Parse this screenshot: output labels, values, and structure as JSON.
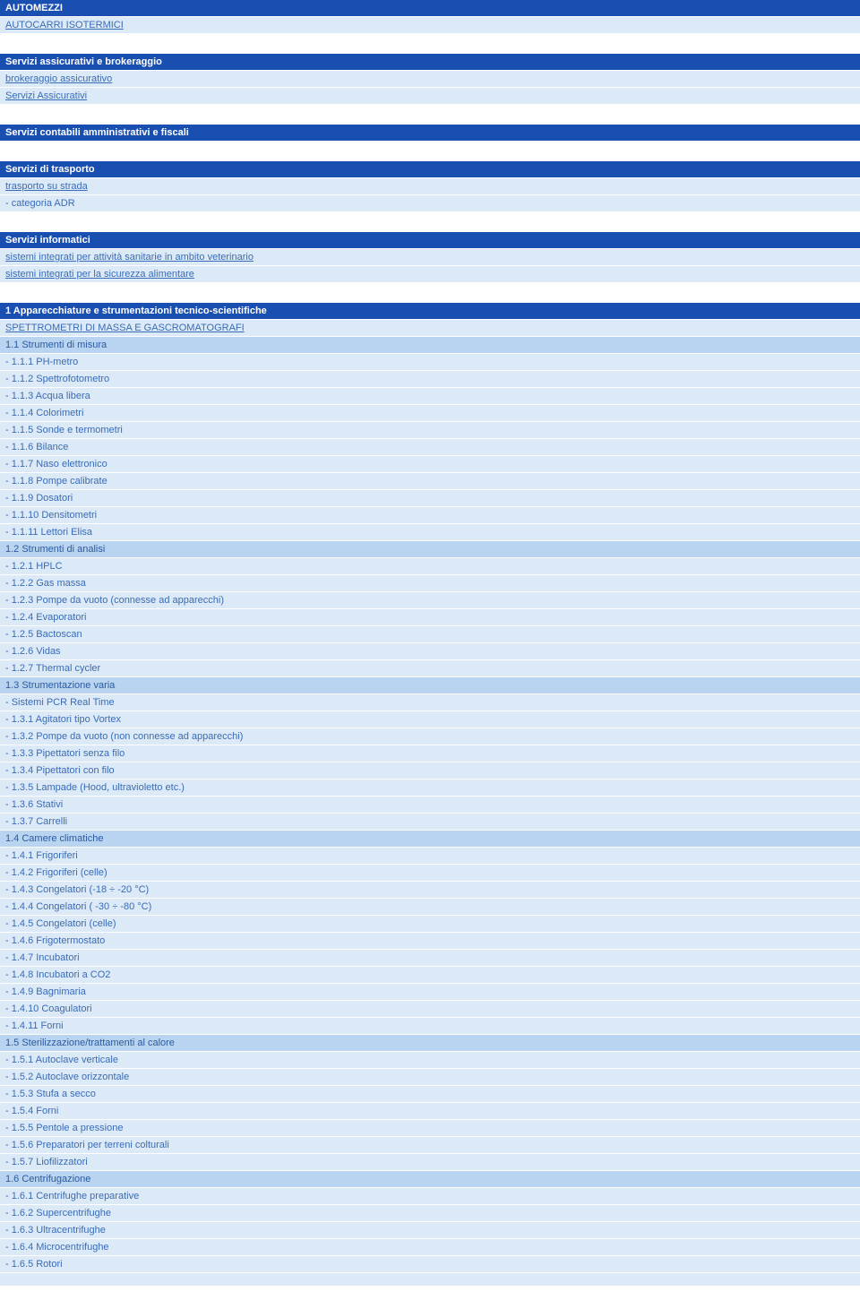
{
  "sections": [
    {
      "header": "AUTOMEZZI",
      "rows": [
        {
          "type": "link",
          "text": "AUTOCARRI ISOTERMICI"
        }
      ]
    },
    {
      "header": "Servizi assicurativi e brokeraggio",
      "rows": [
        {
          "type": "link",
          "text": "brokeraggio assicurativo"
        },
        {
          "type": "link",
          "text": "Servizi Assicurativi"
        }
      ]
    },
    {
      "header": "Servizi contabili amministrativi e fiscali",
      "rows": []
    },
    {
      "header": "Servizi di trasporto",
      "rows": [
        {
          "type": "link",
          "text": "trasporto su strada"
        },
        {
          "type": "plain",
          "text": "- categoria ADR"
        }
      ]
    },
    {
      "header": "Servizi informatici",
      "rows": [
        {
          "type": "link",
          "text": "sistemi integrati per attività sanitarie in ambito veterinario"
        },
        {
          "type": "link",
          "text": "sistemi integrati per la sicurezza alimentare"
        }
      ]
    }
  ],
  "mainSection": {
    "header": "1 Apparecchiature e strumentazioni tecnico-scientifiche",
    "rows": [
      {
        "type": "link",
        "text": "SPETTROMETRI DI MASSA E GASCROMATOGRAFI"
      },
      {
        "type": "sub",
        "text": "1.1 Strumenti di misura"
      },
      {
        "type": "plain",
        "text": "- 1.1.1 PH-metro"
      },
      {
        "type": "plain",
        "text": "- 1.1.2 Spettrofotometro"
      },
      {
        "type": "plain",
        "text": "- 1.1.3 Acqua libera"
      },
      {
        "type": "plain",
        "text": "- 1.1.4 Colorimetri"
      },
      {
        "type": "plain",
        "text": "- 1.1.5 Sonde e termometri"
      },
      {
        "type": "plain",
        "text": "- 1.1.6 Bilance"
      },
      {
        "type": "plain",
        "text": "- 1.1.7 Naso elettronico"
      },
      {
        "type": "plain",
        "text": "- 1.1.8 Pompe calibrate"
      },
      {
        "type": "plain",
        "text": "- 1.1.9 Dosatori"
      },
      {
        "type": "plain",
        "text": "- 1.1.10 Densitometri"
      },
      {
        "type": "plain",
        "text": "- 1.1.11 Lettori Elisa"
      },
      {
        "type": "sub",
        "text": "1.2 Strumenti di analisi"
      },
      {
        "type": "plain",
        "text": "- 1.2.1 HPLC"
      },
      {
        "type": "plain",
        "text": "- 1.2.2 Gas massa"
      },
      {
        "type": "plain",
        "text": "- 1.2.3 Pompe da vuoto (connesse ad apparecchi)"
      },
      {
        "type": "plain",
        "text": "- 1.2.4 Evaporatori"
      },
      {
        "type": "plain",
        "text": "- 1.2.5 Bactoscan"
      },
      {
        "type": "plain",
        "text": "- 1.2.6 Vidas"
      },
      {
        "type": "plain",
        "text": "- 1.2.7 Thermal cycler"
      },
      {
        "type": "sub",
        "text": "1.3 Strumentazione varia"
      },
      {
        "type": "plain",
        "text": "- Sistemi PCR Real Time"
      },
      {
        "type": "plain",
        "text": "- 1.3.1 Agitatori tipo Vortex"
      },
      {
        "type": "plain",
        "text": "- 1.3.2 Pompe da vuoto (non connesse ad apparecchi)"
      },
      {
        "type": "plain",
        "text": "- 1.3.3 Pipettatori senza filo"
      },
      {
        "type": "plain",
        "text": "- 1.3.4 Pipettatori con filo"
      },
      {
        "type": "plain",
        "text": "- 1.3.5 Lampade (Hood, ultravioletto etc.)"
      },
      {
        "type": "plain",
        "text": "- 1.3.6 Stativi"
      },
      {
        "type": "plain",
        "text": "- 1.3.7 Carrelli"
      },
      {
        "type": "sub",
        "text": "1.4 Camere climatiche"
      },
      {
        "type": "plain",
        "text": "- 1.4.1 Frigoriferi"
      },
      {
        "type": "plain",
        "text": "- 1.4.2 Frigoriferi (celle)"
      },
      {
        "type": "plain",
        "text": "- 1.4.3 Congelatori (-18 ÷ -20 °C)"
      },
      {
        "type": "plain",
        "text": "- 1.4.4 Congelatori ( -30 ÷ -80 °C)"
      },
      {
        "type": "plain",
        "text": "- 1.4.5 Congelatori (celle)"
      },
      {
        "type": "plain",
        "text": "- 1.4.6 Frigotermostato"
      },
      {
        "type": "plain",
        "text": "- 1.4.7 Incubatori"
      },
      {
        "type": "plain",
        "text": "- 1.4.8 Incubatori a CO2"
      },
      {
        "type": "plain",
        "text": "- 1.4.9 Bagnimaria"
      },
      {
        "type": "plain",
        "text": "- 1.4.10 Coagulatori"
      },
      {
        "type": "plain",
        "text": "- 1.4.11 Forni"
      },
      {
        "type": "sub",
        "text": "1.5 Sterilizzazione/trattamenti al calore"
      },
      {
        "type": "plain",
        "text": "- 1.5.1 Autoclave verticale"
      },
      {
        "type": "plain",
        "text": "- 1.5.2 Autoclave orizzontale"
      },
      {
        "type": "plain",
        "text": "- 1.5.3 Stufa a secco"
      },
      {
        "type": "plain",
        "text": "- 1.5.4 Forni"
      },
      {
        "type": "plain",
        "text": "- 1.5.5 Pentole a pressione"
      },
      {
        "type": "plain",
        "text": "- 1.5.6 Preparatori per terreni colturali"
      },
      {
        "type": "plain",
        "text": "- 1.5.7 Liofilizzatori"
      },
      {
        "type": "sub",
        "text": "1.6 Centrifugazione"
      },
      {
        "type": "plain",
        "text": "- 1.6.1 Centrifughe preparative"
      },
      {
        "type": "plain",
        "text": "- 1.6.2 Supercentrifughe"
      },
      {
        "type": "plain",
        "text": "- 1.6.3 Ultracentrifughe"
      },
      {
        "type": "plain",
        "text": "- 1.6.4 Microcentrifughe"
      },
      {
        "type": "plain",
        "text": "- 1.6.5 Rotori"
      }
    ]
  },
  "colors": {
    "headerBg": "#1a4fb2",
    "headerText": "#ffffff",
    "subBg": "#b8d4f0",
    "rowBg": "#dceaf8",
    "textColor": "#3a6bb5"
  }
}
